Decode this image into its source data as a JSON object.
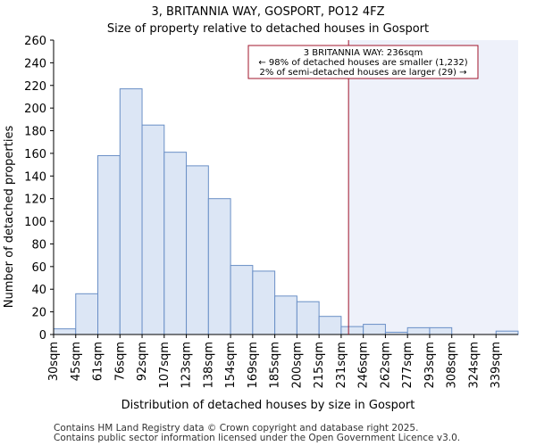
{
  "chart_data": {
    "type": "bar",
    "title": "3, BRITANNIA WAY, GOSPORT, PO12 4FZ",
    "subtitle": "Size of property relative to detached houses in Gosport",
    "xlabel": "Distribution of detached houses by size in Gosport",
    "ylabel": "Number of detached properties",
    "ylim": [
      0,
      260
    ],
    "yticks": [
      0,
      20,
      40,
      60,
      80,
      100,
      120,
      140,
      160,
      180,
      200,
      220,
      240,
      260
    ],
    "tick_labels": [
      "30sqm",
      "45sqm",
      "61sqm",
      "76sqm",
      "92sqm",
      "107sqm",
      "123sqm",
      "138sqm",
      "154sqm",
      "169sqm",
      "185sqm",
      "200sqm",
      "215sqm",
      "231sqm",
      "246sqm",
      "262sqm",
      "277sqm",
      "293sqm",
      "308sqm",
      "324sqm",
      "339sqm"
    ],
    "values": [
      5,
      36,
      158,
      217,
      185,
      161,
      149,
      120,
      61,
      56,
      34,
      29,
      16,
      7,
      9,
      2,
      6,
      6,
      0,
      0,
      3
    ],
    "marker_value_sqm": 236,
    "annotation": {
      "line1": "3 BRITANNIA WAY: 236sqm",
      "line2": "← 98% of detached houses are smaller (1,232)",
      "line3": "2% of semi-detached houses are larger (29) →"
    },
    "colors": {
      "bar_fill": "#dce6f5",
      "bar_stroke": "#6a8fc6",
      "marker": "#a0142b",
      "shade": "#eef1fa"
    }
  },
  "footer": {
    "line1": "Contains HM Land Registry data © Crown copyright and database right 2025.",
    "line2": "Contains public sector information licensed under the Open Government Licence v3.0."
  }
}
